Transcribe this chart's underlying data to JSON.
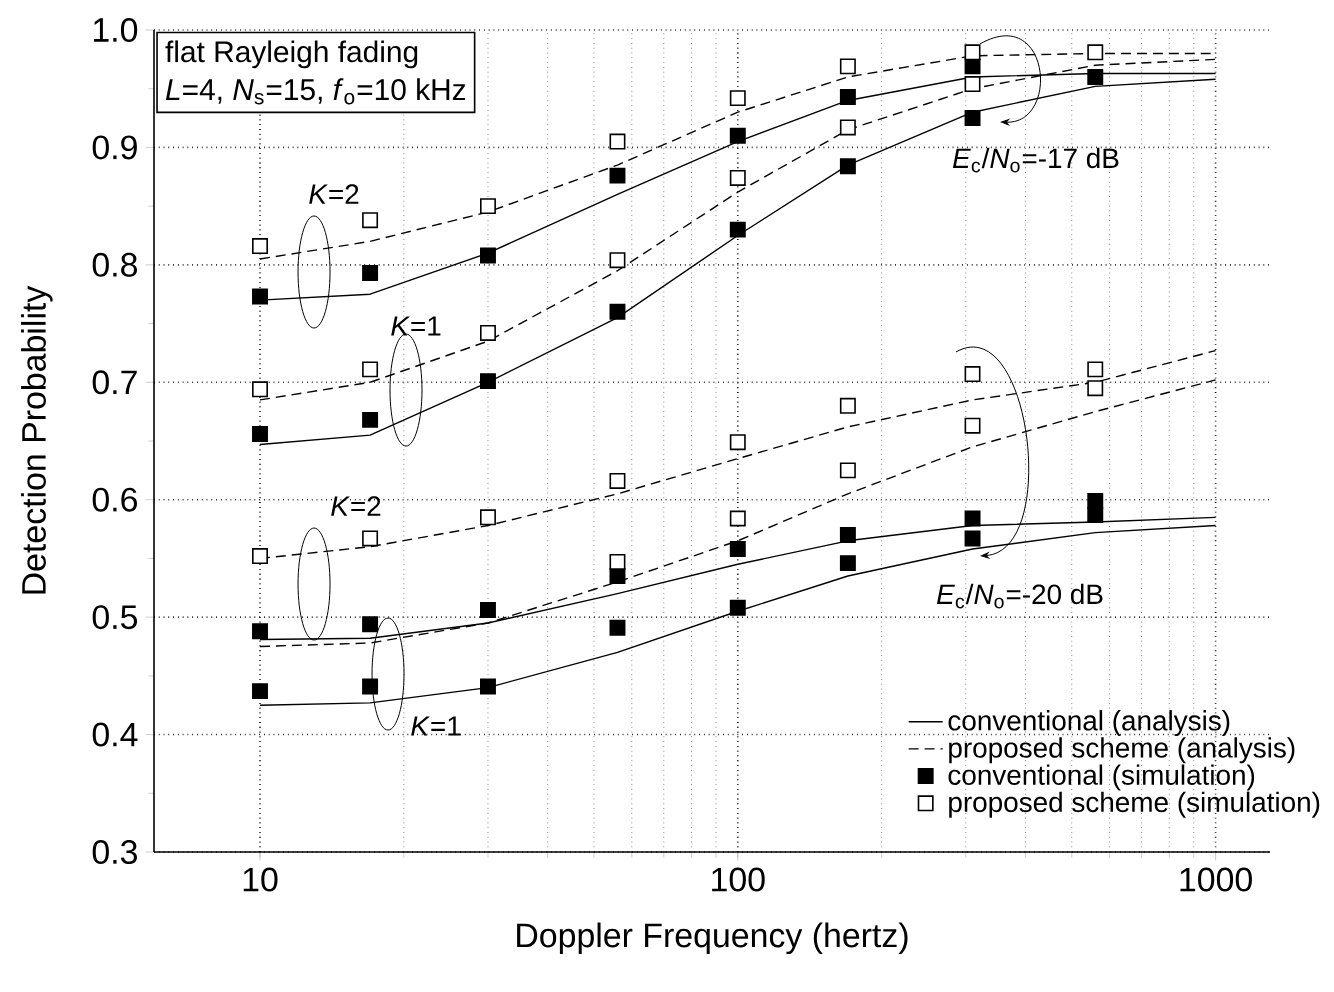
{
  "chart_data": {
    "type": "line",
    "xlabel": "Doppler Frequency (hertz)",
    "ylabel": "Detection Probability",
    "x": [
      10,
      17,
      30,
      56,
      100,
      170,
      310,
      560
    ],
    "log": "x",
    "xlim": [
      6,
      1300
    ],
    "xticks": [
      10,
      100,
      1000
    ],
    "ylim": [
      0.3,
      1.0
    ],
    "yticks": [
      0.3,
      0.4,
      0.5,
      0.6,
      0.7,
      0.8,
      0.9,
      {
        "value": 1.0,
        "label": "1.0"
      }
    ],
    "grid": true,
    "legend": "bottom right",
    "annotations": [
      "flat Rayleigh fading",
      "*L*=4, *N*$_{s}$=15, *f*$_{o}$=10 kHz",
      "*K*=2",
      "*K*=1",
      "*E*$_{c}$/*N*$_{o}$=-17 dB",
      "*K*=2",
      "*K*=1",
      "*E*$_{c}$/*N*$_{o}$=-20 dB"
    ],
    "series": [
      {
        "name": "conventional (analysis)",
        "color": "#000000",
        "line_style": "solid",
        "x": [
          10,
          17,
          30,
          56,
          100,
          170,
          310,
          560,
          1000
        ],
        "values": [
          0.77,
          0.775,
          0.81,
          0.86,
          0.905,
          0.94,
          0.96,
          0.963,
          0.963
        ]
      },
      {
        "name": "proposed scheme (analysis)",
        "color": "#000000",
        "line_style": "dashed",
        "x": [
          10,
          17,
          30,
          56,
          100,
          170,
          310,
          560,
          1000
        ],
        "values": [
          0.805,
          0.82,
          0.845,
          0.885,
          0.93,
          0.96,
          0.978,
          0.98,
          0.98
        ]
      },
      {
        "type": "scatter",
        "name": "conventional (simulation)",
        "color": "#000000",
        "marker": "square",
        "values": [
          0.773,
          0.793,
          0.808,
          0.876,
          0.91,
          0.943,
          0.969,
          0.96
        ]
      },
      {
        "type": "scatter",
        "name": "proposed scheme (simulation)",
        "color": "#ffffff",
        "marker": "square",
        "values": [
          0.816,
          0.838,
          0.85,
          0.905,
          0.942,
          0.969,
          0.981,
          0.981
        ]
      },
      {
        "color": "#000000",
        "line_style": "solid",
        "x": [
          10,
          17,
          30,
          56,
          100,
          170,
          310,
          560,
          1000
        ],
        "values": [
          0.647,
          0.655,
          0.7,
          0.755,
          0.825,
          0.885,
          0.93,
          0.952,
          0.958
        ]
      },
      {
        "color": "#000000",
        "line_style": "dashed",
        "x": [
          10,
          17,
          30,
          56,
          100,
          170,
          310,
          560,
          1000
        ],
        "values": [
          0.685,
          0.7,
          0.735,
          0.795,
          0.862,
          0.915,
          0.95,
          0.97,
          0.975
        ]
      },
      {
        "type": "scatter",
        "color": "#000000",
        "marker": "square",
        "values": [
          0.656,
          0.668,
          0.701,
          0.76,
          0.83,
          0.884,
          0.925,
          null
        ]
      },
      {
        "type": "scatter",
        "color": "#ffffff",
        "marker": "square",
        "values": [
          0.694,
          0.711,
          0.742,
          0.804,
          0.874,
          0.917,
          0.954,
          null
        ]
      },
      {
        "color": "#000000",
        "line_style": "solid",
        "x": [
          10,
          17,
          30,
          56,
          100,
          170,
          310,
          560,
          1000
        ],
        "values": [
          0.481,
          0.482,
          0.495,
          0.52,
          0.545,
          0.565,
          0.578,
          0.581,
          0.585
        ]
      },
      {
        "color": "#000000",
        "line_style": "dashed",
        "x": [
          10,
          17,
          30,
          56,
          100,
          170,
          310,
          560,
          1000
        ],
        "values": [
          0.55,
          0.56,
          0.578,
          0.605,
          0.635,
          0.662,
          0.685,
          0.7,
          0.727
        ]
      },
      {
        "type": "scatter",
        "color": "#000000",
        "marker": "square",
        "values": [
          0.488,
          0.494,
          0.506,
          0.535,
          0.558,
          0.57,
          0.584,
          0.599
        ]
      },
      {
        "type": "scatter",
        "color": "#ffffff",
        "marker": "square",
        "values": [
          0.552,
          0.567,
          0.585,
          0.616,
          0.649,
          0.68,
          0.707,
          0.711
        ]
      },
      {
        "color": "#000000",
        "line_style": "solid",
        "x": [
          10,
          17,
          30,
          56,
          100,
          170,
          310,
          560,
          1000
        ],
        "values": [
          0.425,
          0.427,
          0.44,
          0.47,
          0.505,
          0.535,
          0.558,
          0.572,
          0.578
        ]
      },
      {
        "color": "#000000",
        "line_style": "dashed",
        "x": [
          10,
          17,
          30,
          56,
          100,
          170,
          310,
          560,
          1000
        ],
        "values": [
          0.475,
          0.478,
          0.495,
          0.53,
          0.565,
          0.605,
          0.645,
          0.675,
          0.702
        ]
      },
      {
        "type": "scatter",
        "color": "#000000",
        "marker": "square",
        "values": [
          0.437,
          0.441,
          0.441,
          0.491,
          0.508,
          0.546,
          0.567,
          0.587
        ]
      },
      {
        "type": "scatter",
        "color": "#ffffff",
        "marker": "square",
        "values": [
          null,
          null,
          null,
          0.547,
          0.584,
          0.625,
          0.663,
          0.695
        ]
      }
    ]
  }
}
